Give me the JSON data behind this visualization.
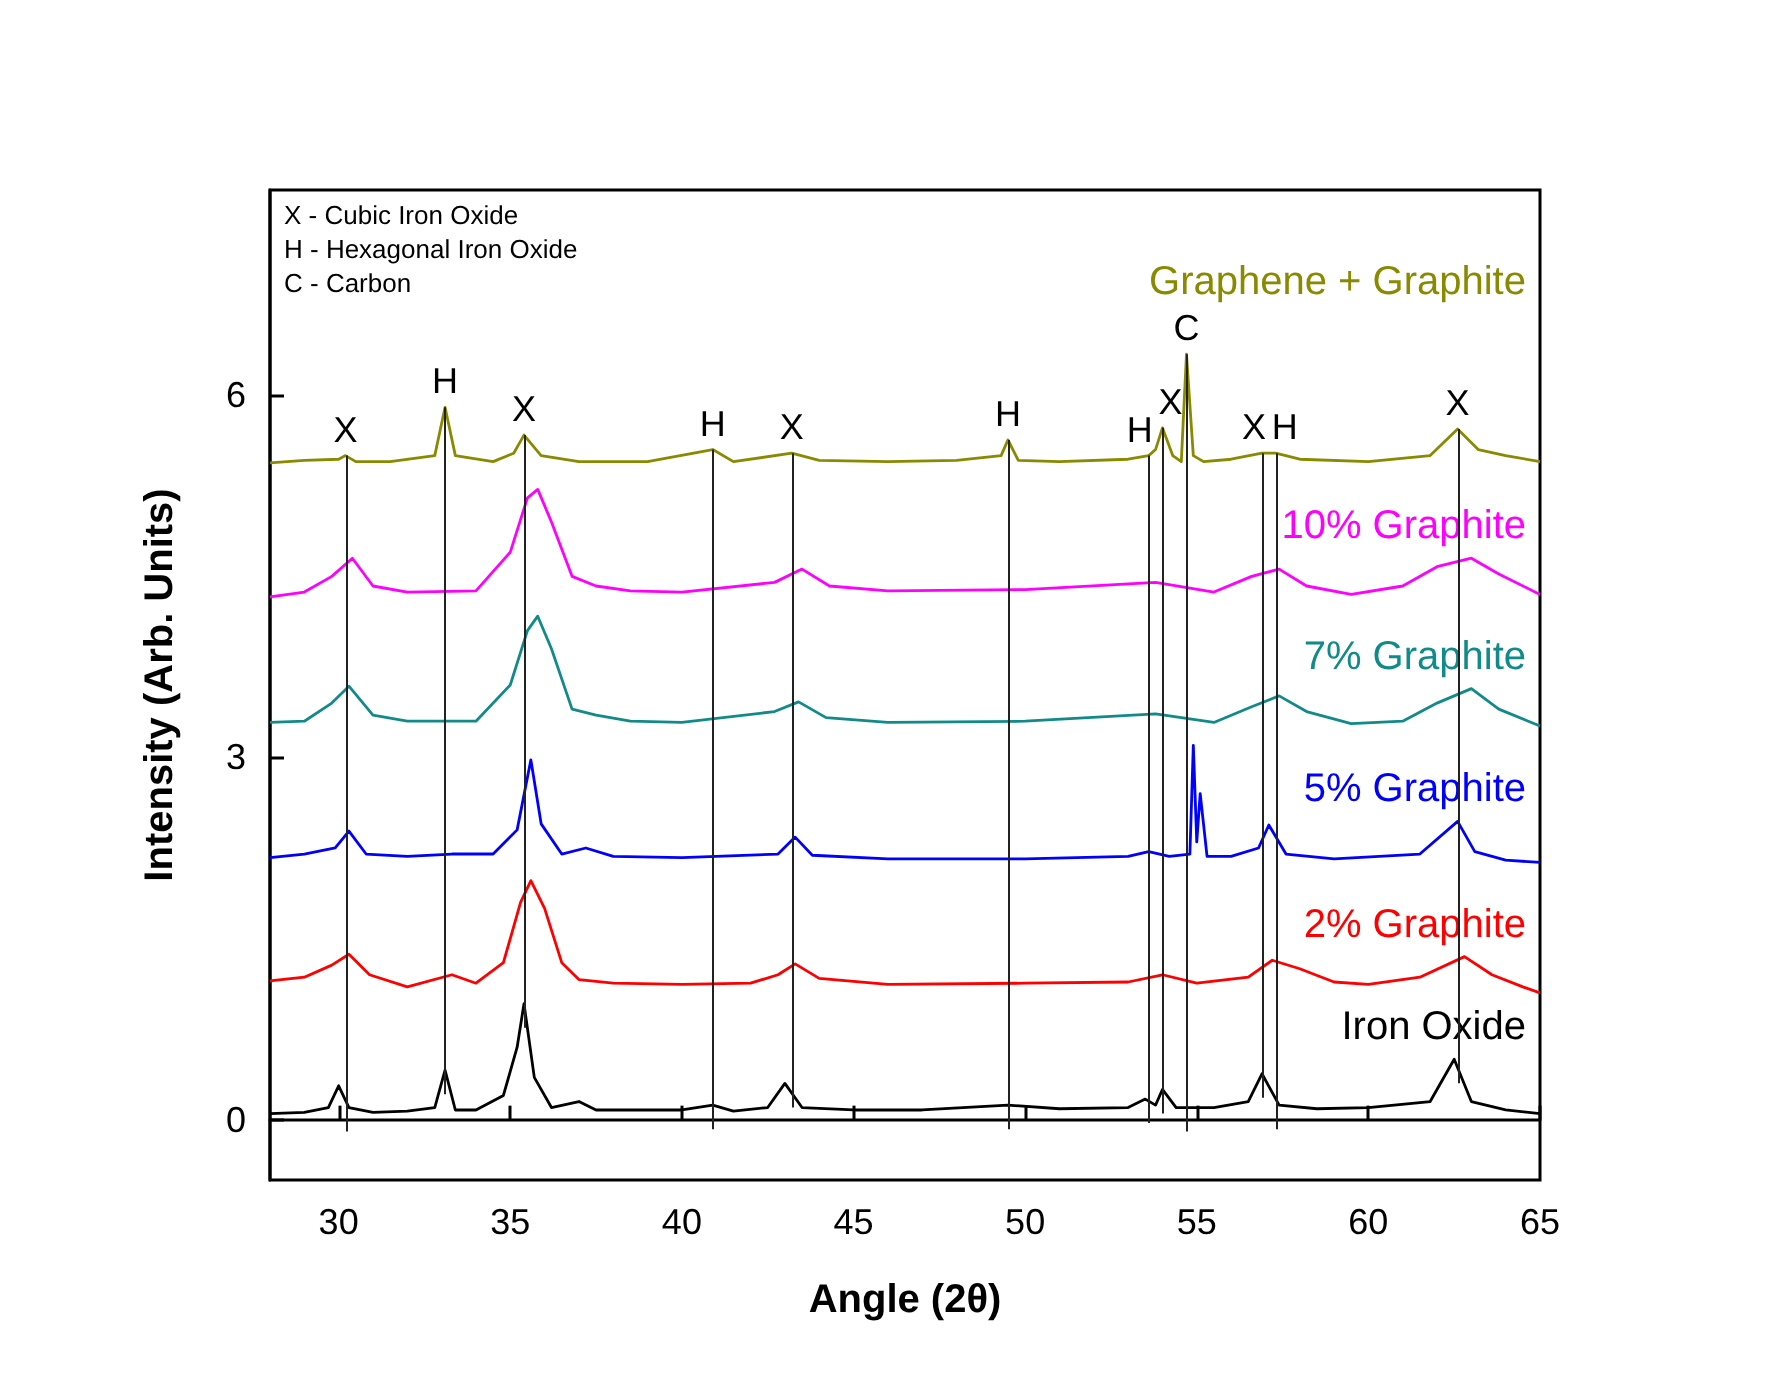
{
  "chart_data": {
    "type": "line",
    "xlabel": "Angle (2θ)",
    "ylabel": "Intensity (Arb. Units)",
    "xlim": [
      28,
      65
    ],
    "xticks": [
      30,
      35,
      40,
      45,
      50,
      55,
      60,
      65
    ],
    "ylim": [
      -0.5,
      7.7
    ],
    "yticks": [
      0,
      3,
      6
    ],
    "line_style": "solid",
    "annotations": [
      "X - Cubic Iron Oxide",
      "H - Hexagonal Iron Oxide",
      "C - Carbon"
    ],
    "ref_lines": [
      {
        "axis": "x",
        "value": 30.2,
        "label": "X"
      },
      {
        "axis": "x",
        "value": 33.1,
        "label": "H"
      },
      {
        "axis": "x",
        "value": 35.4,
        "label": "X"
      },
      {
        "axis": "x",
        "value": 40.9,
        "label": "H"
      },
      {
        "axis": "x",
        "value": 43.2,
        "label": "X"
      },
      {
        "axis": "x",
        "value": 49.5,
        "label": "H"
      },
      {
        "axis": "x",
        "value": 53.6,
        "label": "H"
      },
      {
        "axis": "x",
        "value": 54.0,
        "label": "X"
      },
      {
        "axis": "x",
        "value": 54.7,
        "label": "C"
      },
      {
        "axis": "x",
        "value": 56.9,
        "label": "X"
      },
      {
        "axis": "x",
        "value": 57.3,
        "label": "H"
      },
      {
        "axis": "x",
        "value": 62.6,
        "label": "X"
      }
    ],
    "series": [
      {
        "name": "Iron Oxide",
        "color": "#000000",
        "x": [
          28,
          29,
          29.7,
          30.0,
          30.3,
          31,
          32,
          32.8,
          33.1,
          33.4,
          34,
          34.8,
          35.2,
          35.4,
          35.7,
          36.2,
          37,
          37.5,
          38.5,
          40,
          40.9,
          41.5,
          42.5,
          43.0,
          43.5,
          45,
          47,
          49.5,
          51,
          53,
          53.5,
          53.8,
          54.0,
          54.4,
          55.5,
          56.5,
          56.9,
          57.4,
          58.5,
          60,
          61.8,
          62.5,
          63.0,
          64,
          65
        ],
        "values": [
          0.05,
          0.06,
          0.1,
          0.28,
          0.1,
          0.06,
          0.07,
          0.1,
          0.41,
          0.08,
          0.08,
          0.2,
          0.6,
          0.96,
          0.35,
          0.1,
          0.15,
          0.08,
          0.08,
          0.08,
          0.12,
          0.07,
          0.1,
          0.3,
          0.1,
          0.08,
          0.08,
          0.12,
          0.09,
          0.1,
          0.17,
          0.12,
          0.25,
          0.1,
          0.1,
          0.15,
          0.38,
          0.12,
          0.09,
          0.1,
          0.15,
          0.5,
          0.15,
          0.08,
          0.05
        ]
      },
      {
        "name": "2% Graphite",
        "color": "#ff0000",
        "x": [
          28,
          29,
          29.8,
          30.3,
          30.9,
          32,
          33.3,
          34,
          34.8,
          35.3,
          35.6,
          36,
          36.5,
          37,
          38,
          40,
          42,
          42.8,
          43.3,
          44,
          46,
          50,
          53,
          54.0,
          55,
          56.5,
          57.2,
          58,
          59,
          60,
          61.5,
          62.8,
          63.6,
          64.5,
          65
        ],
        "values": [
          1.15,
          1.18,
          1.28,
          1.37,
          1.2,
          1.1,
          1.2,
          1.13,
          1.3,
          1.8,
          1.98,
          1.75,
          1.3,
          1.16,
          1.13,
          1.12,
          1.13,
          1.2,
          1.29,
          1.17,
          1.12,
          1.13,
          1.14,
          1.2,
          1.13,
          1.18,
          1.32,
          1.25,
          1.14,
          1.12,
          1.18,
          1.35,
          1.2,
          1.1,
          1.05
        ]
      },
      {
        "name": "5% Graphite",
        "color": "#0000ff",
        "x": [
          28,
          29,
          29.9,
          30.3,
          30.8,
          32,
          33.3,
          34.5,
          35.2,
          35.6,
          35.9,
          36.5,
          37.2,
          38,
          40,
          42.8,
          43.3,
          43.8,
          46,
          50,
          53,
          53.6,
          54.2,
          54.8,
          54.9,
          55.0,
          55.1,
          55.3,
          56,
          56.8,
          57.1,
          57.6,
          59,
          61.5,
          62.6,
          63.1,
          64,
          65
        ],
        "values": [
          2.17,
          2.2,
          2.25,
          2.39,
          2.2,
          2.18,
          2.2,
          2.2,
          2.4,
          2.98,
          2.45,
          2.2,
          2.25,
          2.18,
          2.17,
          2.2,
          2.34,
          2.19,
          2.16,
          2.16,
          2.18,
          2.22,
          2.18,
          2.2,
          3.1,
          2.3,
          2.7,
          2.18,
          2.18,
          2.25,
          2.44,
          2.2,
          2.16,
          2.2,
          2.47,
          2.22,
          2.15,
          2.13
        ]
      },
      {
        "name": "7% Graphite",
        "color": "#138a8a",
        "x": [
          28,
          29,
          29.8,
          30.3,
          31,
          32,
          34,
          35.0,
          35.5,
          35.8,
          36.2,
          36.8,
          37.5,
          38.5,
          40,
          42.7,
          43.4,
          44.2,
          46,
          50,
          53.8,
          55.5,
          56.6,
          57.4,
          58.2,
          59.5,
          61,
          62,
          63.0,
          63.8,
          65
        ],
        "values": [
          3.29,
          3.3,
          3.45,
          3.59,
          3.35,
          3.3,
          3.3,
          3.6,
          4.05,
          4.17,
          3.9,
          3.4,
          3.35,
          3.3,
          3.29,
          3.38,
          3.46,
          3.33,
          3.29,
          3.3,
          3.36,
          3.29,
          3.42,
          3.51,
          3.38,
          3.28,
          3.3,
          3.45,
          3.57,
          3.4,
          3.26
        ]
      },
      {
        "name": "10% Graphite",
        "color": "#ff00ff",
        "x": [
          28,
          29,
          29.8,
          30.4,
          31,
          32,
          34,
          35.0,
          35.5,
          35.8,
          36.2,
          36.8,
          37.5,
          38.5,
          40,
          42.7,
          43.5,
          44.3,
          46,
          50,
          53.8,
          55.5,
          56.6,
          57.4,
          58.2,
          59.5,
          61,
          62,
          63.0,
          63.8,
          65
        ],
        "values": [
          4.33,
          4.37,
          4.5,
          4.65,
          4.42,
          4.37,
          4.38,
          4.7,
          5.15,
          5.22,
          4.95,
          4.5,
          4.42,
          4.38,
          4.37,
          4.45,
          4.56,
          4.42,
          4.38,
          4.39,
          4.45,
          4.37,
          4.5,
          4.56,
          4.42,
          4.35,
          4.42,
          4.58,
          4.65,
          4.52,
          4.35
        ]
      },
      {
        "name": "Graphene + Graphite",
        "color": "#8a8a00",
        "x": [
          28,
          29,
          30.0,
          30.2,
          30.5,
          31.5,
          32.8,
          33.1,
          33.4,
          34.5,
          35.1,
          35.4,
          35.9,
          37,
          39,
          40.9,
          41.5,
          43.2,
          44,
          46,
          48,
          49.3,
          49.5,
          49.8,
          51,
          53,
          53.6,
          53.8,
          54.0,
          54.3,
          54.55,
          54.7,
          54.9,
          55.2,
          56,
          56.9,
          57.3,
          58,
          60,
          61.8,
          62.6,
          63.2,
          64,
          65
        ],
        "values": [
          5.44,
          5.46,
          5.47,
          5.5,
          5.45,
          5.45,
          5.5,
          5.9,
          5.5,
          5.45,
          5.52,
          5.67,
          5.5,
          5.45,
          5.45,
          5.55,
          5.45,
          5.52,
          5.46,
          5.45,
          5.46,
          5.5,
          5.63,
          5.46,
          5.45,
          5.47,
          5.5,
          5.55,
          5.73,
          5.5,
          5.45,
          6.34,
          5.5,
          5.45,
          5.47,
          5.52,
          5.52,
          5.47,
          5.45,
          5.5,
          5.72,
          5.55,
          5.5,
          5.45
        ]
      }
    ]
  }
}
